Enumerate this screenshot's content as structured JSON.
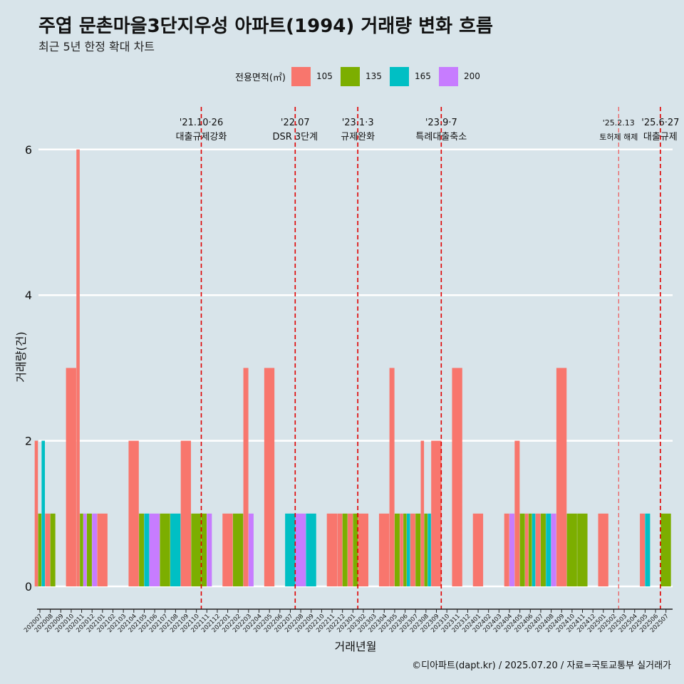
{
  "title": "주엽 문촌마을3단지우성 아파트(1994) 거래량 변화 흐름",
  "subtitle": "최근 5년 한정 확대 차트",
  "caption": "©디아파트(dapt.kr) / 2025.07.20 / 자료=국토교통부 실거래가",
  "legend": {
    "title": "전용면적(㎡)",
    "items": [
      {
        "label": "105",
        "color": "#f8766d"
      },
      {
        "label": "135",
        "color": "#7cae00"
      },
      {
        "label": "165",
        "color": "#00bfc4"
      },
      {
        "label": "200",
        "color": "#c77cff"
      }
    ]
  },
  "chart_data": {
    "type": "bar",
    "title": "주엽 문촌마을3단지우성 아파트(1994) 거래량 변화 흐름",
    "xlabel": "거래년월",
    "ylabel": "거래량(건)",
    "ylim": [
      0,
      6.6
    ],
    "yticks": [
      0,
      2,
      4,
      6
    ],
    "categories": [
      "202007",
      "202008",
      "202009",
      "202010",
      "202011",
      "202012",
      "202101",
      "202102",
      "202103",
      "202104",
      "202105",
      "202106",
      "202107",
      "202108",
      "202109",
      "202110",
      "202111",
      "202112",
      "202201",
      "202202",
      "202203",
      "202204",
      "202205",
      "202206",
      "202207",
      "202208",
      "202209",
      "202210",
      "202211",
      "202212",
      "202301",
      "202302",
      "202303",
      "202304",
      "202305",
      "202306",
      "202307",
      "202308",
      "202309",
      "202310",
      "202311",
      "202312",
      "202401",
      "202402",
      "202403",
      "202404",
      "202405",
      "202406",
      "202407",
      "202408",
      "202409",
      "202410",
      "202411",
      "202412",
      "202501",
      "202502",
      "202503",
      "202504",
      "202505",
      "202506",
      "202507"
    ],
    "series": [
      {
        "name": "105",
        "color": "#f8766d",
        "values": [
          2,
          1,
          0,
          3,
          6,
          0,
          1,
          0,
          0,
          2,
          0,
          0,
          0,
          0,
          2,
          0,
          0,
          0,
          1,
          0,
          3,
          0,
          3,
          0,
          0,
          0,
          0,
          0,
          1,
          1,
          1,
          1,
          0,
          1,
          3,
          1,
          1,
          2,
          2,
          0,
          3,
          0,
          1,
          0,
          0,
          1,
          2,
          1,
          1,
          0,
          3,
          0,
          0,
          0,
          1,
          0,
          0,
          0,
          1,
          0,
          0
        ]
      },
      {
        "name": "135",
        "color": "#7cae00",
        "values": [
          1,
          1,
          0,
          0,
          1,
          1,
          0,
          0,
          0,
          0,
          1,
          0,
          1,
          0,
          0,
          1,
          1,
          0,
          0,
          1,
          0,
          0,
          0,
          0,
          0,
          0,
          0,
          0,
          0,
          1,
          1,
          0,
          0,
          0,
          1,
          1,
          1,
          1,
          0,
          0,
          0,
          0,
          0,
          0,
          0,
          0,
          1,
          1,
          1,
          0,
          0,
          1,
          1,
          0,
          0,
          0,
          0,
          0,
          0,
          0,
          1
        ]
      },
      {
        "name": "165",
        "color": "#00bfc4",
        "values": [
          2,
          0,
          0,
          0,
          0,
          0,
          0,
          0,
          0,
          0,
          1,
          0,
          0,
          1,
          0,
          0,
          0,
          0,
          0,
          0,
          0,
          0,
          0,
          0,
          1,
          0,
          1,
          0,
          0,
          0,
          0,
          0,
          0,
          0,
          0,
          1,
          0,
          1,
          0,
          0,
          0,
          0,
          0,
          0,
          0,
          0,
          0,
          1,
          0,
          1,
          0,
          0,
          0,
          0,
          0,
          0,
          0,
          0,
          1,
          0,
          0
        ]
      },
      {
        "name": "200",
        "color": "#c77cff",
        "values": [
          0,
          0,
          0,
          0,
          1,
          1,
          0,
          0,
          0,
          0,
          0,
          1,
          0,
          0,
          0,
          0,
          1,
          0,
          0,
          0,
          1,
          0,
          0,
          0,
          0,
          1,
          0,
          0,
          0,
          0,
          0,
          0,
          0,
          0,
          0,
          0,
          0,
          0,
          0,
          0,
          0,
          0,
          0,
          0,
          0,
          1,
          0,
          0,
          0,
          1,
          0,
          0,
          0,
          0,
          0,
          0,
          0,
          0,
          0,
          0,
          0
        ]
      }
    ],
    "annotations": [
      {
        "after": "202110",
        "date": "'21.10·26",
        "label": "대출규제강화",
        "style": "dashed"
      },
      {
        "after": "202207",
        "date": "'22.07",
        "label": "DSR 3단계",
        "style": "dashed"
      },
      {
        "after": "202301",
        "date": "'23.1·3",
        "label": "규제완화",
        "style": "dashed"
      },
      {
        "after": "202309",
        "date": "'23.9·7",
        "label": "특례대출축소",
        "style": "dashed"
      },
      {
        "after": "202502",
        "date": "'25.2.13",
        "label": "토허제 해제",
        "style": "dashed-light"
      },
      {
        "after": "202506",
        "date": "'25.6·27",
        "label": "대출규제",
        "style": "dashed"
      }
    ]
  }
}
